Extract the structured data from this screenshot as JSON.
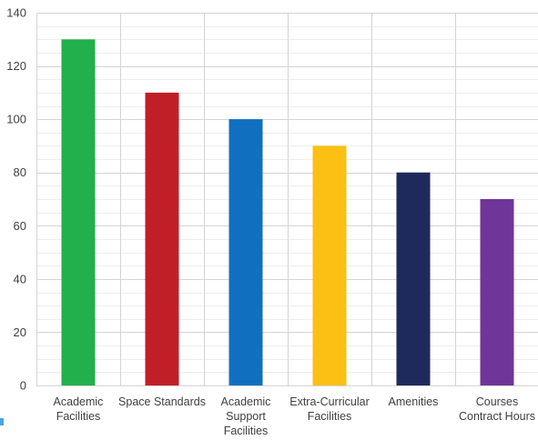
{
  "chart_data": {
    "type": "bar",
    "title": "",
    "xlabel": "",
    "ylabel": "",
    "ylim": [
      0,
      140
    ],
    "yticks": [
      0,
      20,
      40,
      60,
      80,
      100,
      120,
      140
    ],
    "minor_grid_step": 5,
    "grid": true,
    "legend": "none",
    "categories": [
      [
        "Academic",
        "Facilities"
      ],
      [
        "Space Standards"
      ],
      [
        "Academic",
        "Support",
        "Facilities"
      ],
      [
        "Extra-Curricular",
        "Facilities"
      ],
      [
        "Amenities"
      ],
      [
        "Courses",
        "Contract Hours"
      ]
    ],
    "values": [
      130,
      110,
      100,
      90,
      80,
      70
    ],
    "colors": [
      "#21b04b",
      "#c11f27",
      "#1070bf",
      "#fbc013",
      "#1f2a5c",
      "#6f3598"
    ]
  }
}
